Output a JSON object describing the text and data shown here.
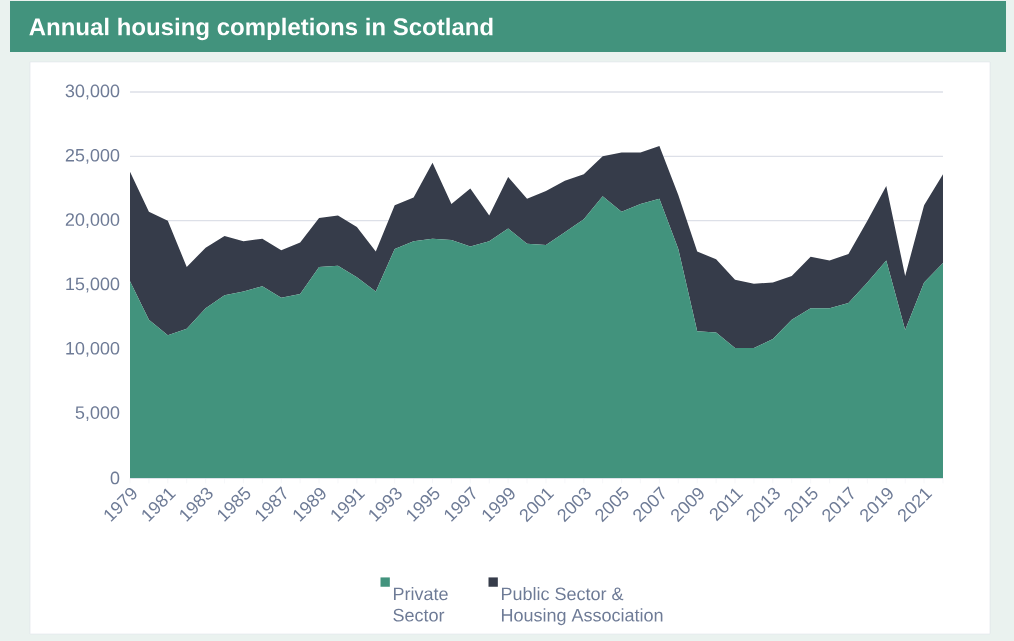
{
  "chart_data": {
    "type": "area",
    "title": "Annual housing completions in Scotland",
    "stacked": true,
    "grid": "y",
    "legend": "bottom",
    "x": [
      1979,
      1980,
      1981,
      1982,
      1983,
      1984,
      1985,
      1986,
      1987,
      1988,
      1989,
      1990,
      1991,
      1992,
      1993,
      1994,
      1995,
      1996,
      1997,
      1998,
      1999,
      2000,
      2001,
      2002,
      2003,
      2004,
      2005,
      2006,
      2007,
      2008,
      2009,
      2010,
      2011,
      2012,
      2013,
      2014,
      2015,
      2016,
      2017,
      2018,
      2019,
      2020,
      2021,
      2022
    ],
    "xlim": [
      1979,
      2022
    ],
    "xticks": [
      1979,
      {
        "value": 1980,
        "label": null
      },
      1981,
      {
        "value": 1982,
        "label": null
      },
      1983,
      {
        "value": 1984,
        "label": null
      },
      1985,
      {
        "value": 1986,
        "label": null
      },
      1987,
      {
        "value": 1988,
        "label": null
      },
      1989,
      {
        "value": 1990,
        "label": null
      },
      1991,
      {
        "value": 1992,
        "label": null
      },
      1993,
      {
        "value": 1994,
        "label": null
      },
      1995,
      {
        "value": 1996,
        "label": null
      },
      1997,
      {
        "value": 1998,
        "label": null
      },
      1999,
      {
        "value": 2000,
        "label": null
      },
      2001,
      {
        "value": 2002,
        "label": null
      },
      2003,
      {
        "value": 2004,
        "label": null
      },
      2005,
      {
        "value": 2006,
        "label": null
      },
      2007,
      {
        "value": 2008,
        "label": null
      },
      2009,
      {
        "value": 2010,
        "label": null
      },
      2011,
      {
        "value": 2012,
        "label": null
      },
      2013,
      {
        "value": 2014,
        "label": null
      },
      2015,
      {
        "value": 2016,
        "label": null
      },
      2017,
      {
        "value": 2018,
        "label": null
      },
      2019,
      {
        "value": 2020,
        "label": null
      },
      2021,
      {
        "value": 2022,
        "label": null
      }
    ],
    "ylim": [
      0,
      30000
    ],
    "yticks": [
      0,
      {
        "value": 5000,
        "label": "5,000"
      },
      {
        "value": 10000,
        "label": "10,000"
      },
      {
        "value": 15000,
        "label": "15,000"
      },
      {
        "value": 20000,
        "label": "20,000"
      },
      {
        "value": 25000,
        "label": "25,000"
      },
      {
        "value": 30000,
        "label": "30,000"
      }
    ],
    "series": [
      {
        "name": "Private Sector",
        "color": "#42937d",
        "values": [
          15300,
          12300,
          11100,
          11600,
          13200,
          14200,
          14500,
          14900,
          14000,
          14300,
          16400,
          16500,
          15600,
          14500,
          17800,
          18400,
          18600,
          18500,
          18000,
          18400,
          19400,
          18200,
          18100,
          19100,
          20100,
          21900,
          20700,
          21300,
          21700,
          17800,
          11400,
          11300,
          10100,
          10100,
          10800,
          12300,
          13200,
          13200,
          13600,
          15200,
          16900,
          11500,
          15200,
          16700
        ]
      },
      {
        "name": "Public Sector & Housing Association",
        "color": "#363c4a",
        "values": [
          8500,
          8400,
          8900,
          4800,
          4700,
          4600,
          3900,
          3700,
          3700,
          4000,
          3800,
          3900,
          3900,
          3100,
          3400,
          3400,
          5900,
          2800,
          4500,
          2000,
          4000,
          3500,
          4200,
          4000,
          3500,
          3100,
          4600,
          4000,
          4100,
          4200,
          6200,
          5700,
          5300,
          5000,
          4400,
          3400,
          4000,
          3700,
          3800,
          4800,
          5800,
          4200,
          6000,
          6900
        ]
      }
    ]
  }
}
